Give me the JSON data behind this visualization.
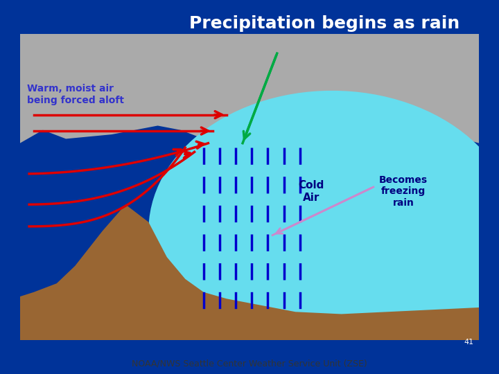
{
  "bg_outer": "#003399",
  "bg_inner": "#ffffcc",
  "title_text": "Precipitation begins as rain",
  "title_color": "white",
  "title_fontsize": 18,
  "warm_label": "Warm, moist air\nbeing forced aloft",
  "warm_label_color": "#3333cc",
  "cold_label": "Cold\nAir",
  "cold_label_color": "#000080",
  "freezing_label": "Becomes\nfreezing\nrain",
  "freezing_label_color": "#000080",
  "footer_text": "NOAA/NWS Seattle Center Weather Service Unit (ZSE)",
  "footer_color": "white",
  "slide_num": "41",
  "gray_color": "#aaaaaa",
  "light_blue_color": "#66ddee",
  "brown_color": "#996633",
  "red_arrow_color": "#dd0000",
  "green_arrow_color": "#00aa44",
  "blue_dash_color": "#0000cc",
  "purple_arrow_color": "#cc88cc"
}
